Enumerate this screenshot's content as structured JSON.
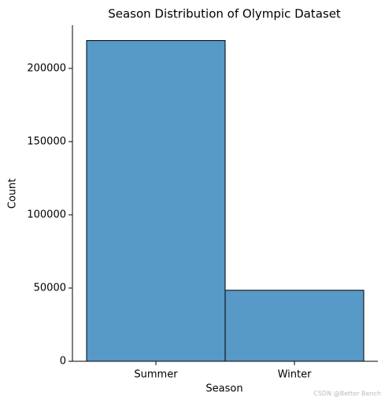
{
  "chart_data": {
    "type": "bar",
    "title": "Season Distribution of Olympic Dataset",
    "x_label": "Season",
    "y_label": "Count",
    "categories": [
      "Summer",
      "Winter"
    ],
    "values": [
      219000,
      48500
    ],
    "color": "#5799c7",
    "ylim": [
      0,
      229500
    ],
    "yticks": [
      0,
      50000,
      100000,
      150000,
      200000
    ],
    "grid": false
  },
  "watermark": "CSDN @Better Bench"
}
